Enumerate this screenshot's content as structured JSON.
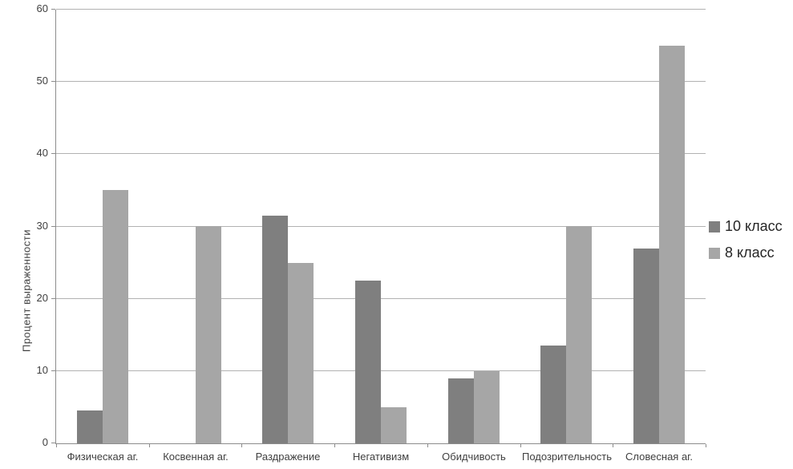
{
  "chart_data": {
    "type": "bar",
    "title": "",
    "xlabel": "",
    "ylabel": "Процент выраженности",
    "ylim": [
      0,
      60
    ],
    "ytick_step": 10,
    "grid": true,
    "legend_position": "right",
    "categories": [
      "Физическая аг.",
      "Косвенная аг.",
      "Раздражение",
      "Негативизм",
      "Обидчивость",
      "Подозрительность",
      "Словесная аг."
    ],
    "series": [
      {
        "name": "10 класс",
        "color": "#7f7f7f",
        "values": [
          4.5,
          0,
          31.5,
          22.5,
          9,
          13.5,
          27
        ]
      },
      {
        "name": "8 класс",
        "color": "#a6a6a6",
        "values": [
          35,
          30,
          25,
          5,
          10,
          30,
          55
        ]
      }
    ]
  },
  "style_colors": {
    "background": "#ffffff",
    "gridline": "#b2b2b2",
    "axis": "#8c8c8c",
    "tick_text": "#3f3f3f",
    "legend_text": "#262626"
  }
}
